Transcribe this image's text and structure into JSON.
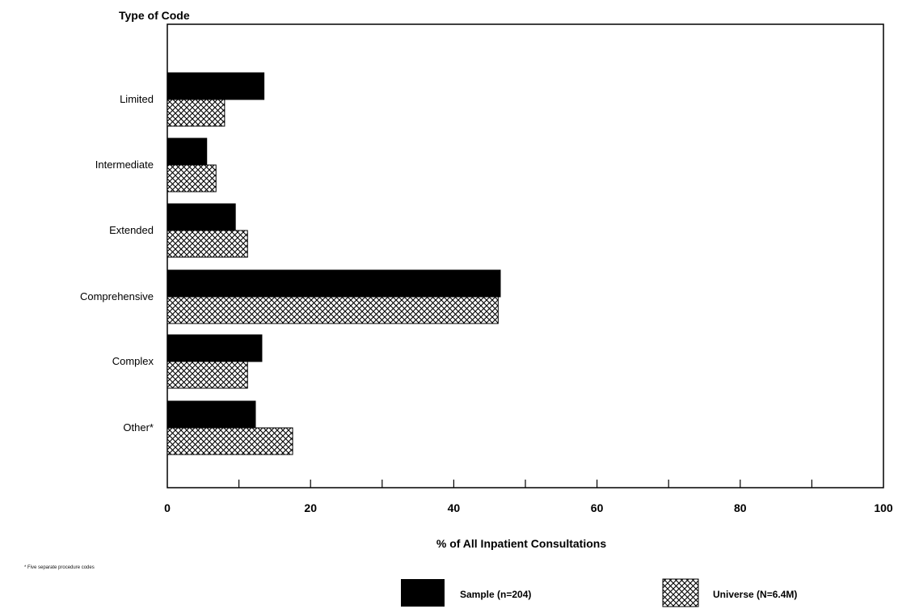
{
  "chart_data": {
    "type": "bar",
    "orientation": "horizontal",
    "title": "",
    "y_axis_title": "Type of Code",
    "xlabel": "% of All Inpatient Consultations",
    "categories": [
      "Limited",
      "Intermediate",
      "Extended",
      "Comprehensive",
      "Complex",
      "Other*"
    ],
    "series": [
      {
        "name": "Sample (n=204)",
        "values": [
          13.5,
          5.5,
          9.5,
          46.5,
          13.2,
          12.3
        ],
        "color": "#000000",
        "pattern": "solid"
      },
      {
        "name": "Universe (N=6.4M)",
        "values": [
          8.0,
          6.8,
          11.2,
          46.2,
          11.2,
          17.5
        ],
        "color": "#000000",
        "pattern": "crosshatch"
      }
    ],
    "xlim": [
      0,
      100
    ],
    "x_ticks": [
      "0",
      "20",
      "40",
      "60",
      "80",
      "100"
    ],
    "grid": false,
    "legend_position": "bottom",
    "footnote": "* Five separate procedure codes"
  }
}
